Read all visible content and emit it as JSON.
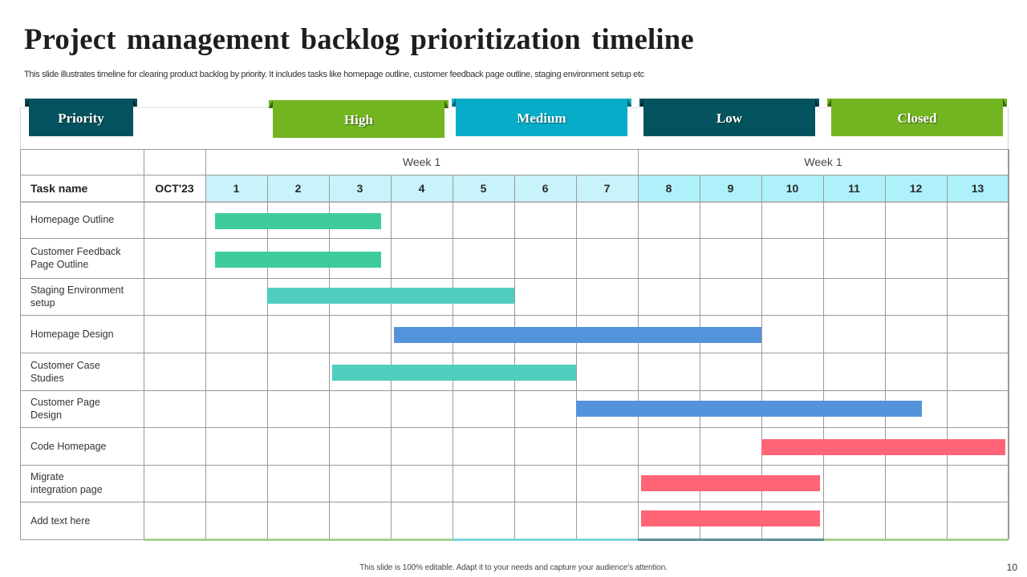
{
  "slide": {
    "title": "Project management backlog prioritization timeline",
    "subtitle": "This slide illustrates timeline for clearing product backlog by priority.  It includes tasks like homepage outline, customer feedback page outline, staging environment setup etc",
    "footer": "This slide is 100% editable.  Adapt it to your needs and capture your audience's attention.",
    "page_number": "10"
  },
  "legend": {
    "tabs": [
      {
        "label": "Priority",
        "color": "#04525f"
      },
      {
        "label": "High",
        "color": "#72b520"
      },
      {
        "label": "Medium",
        "color": "#07adc8"
      },
      {
        "label": "Low",
        "color": "#03535e"
      },
      {
        "label": "Closed",
        "color": "#72b520"
      }
    ]
  },
  "table": {
    "col_task_header": "Task name",
    "col_month_header": "OCT'23",
    "week_groups": [
      {
        "label": "Week 1",
        "from_day": 1,
        "to_day": 7
      },
      {
        "label": "Week 1",
        "from_day": 8,
        "to_day": 13
      }
    ],
    "days": [
      "1",
      "2",
      "3",
      "4",
      "5",
      "6",
      "7",
      "8",
      "9",
      "10",
      "11",
      "12",
      "13"
    ],
    "day_colors": {
      "week1": "#c8f3fa",
      "week2": "#aff1fb"
    },
    "bottom_border_colors": [
      "#a9d18e",
      "#7fd3dc",
      "#5b8f97",
      "#a9d18e"
    ]
  },
  "chart_data": {
    "type": "gantt",
    "title": "Project management backlog prioritization timeline",
    "xlabel": "OCT'23 (days)",
    "x_ticks": [
      1,
      2,
      3,
      4,
      5,
      6,
      7,
      8,
      9,
      10,
      11,
      12,
      13
    ],
    "x_groups": [
      "Week 1",
      "Week 1"
    ],
    "legend": [
      "High",
      "Medium",
      "Low",
      "Closed"
    ],
    "tasks": [
      {
        "name": "Homepage  Outline",
        "start": 1.15,
        "end": 3.85,
        "color": "#3ecc9a"
      },
      {
        "name": "Customer Feedback\nPage Outline",
        "start": 1.15,
        "end": 3.85,
        "color": "#3ecc9a"
      },
      {
        "name": "Staging Environment\nsetup",
        "start": 2.0,
        "end": 6.0,
        "color": "#50cdbe"
      },
      {
        "name": "Homepage  Design",
        "start": 4.05,
        "end": 10.0,
        "color": "#5592dc"
      },
      {
        "name": "Customer Case\nStudies",
        "start": 3.05,
        "end": 7.0,
        "color": "#50cdbe"
      },
      {
        "name": "Customer Page\nDesign",
        "start": 7.0,
        "end": 12.6,
        "color": "#5592dc"
      },
      {
        "name": "Code Homepage",
        "start": 10.0,
        "end": 13.95,
        "color": "#ff6577"
      },
      {
        "name": "Migrate\nintegration  page",
        "start": 8.05,
        "end": 10.95,
        "color": "#ff6577"
      },
      {
        "name": "Add text here",
        "start": 8.05,
        "end": 10.95,
        "color": "#ff6577"
      }
    ]
  }
}
